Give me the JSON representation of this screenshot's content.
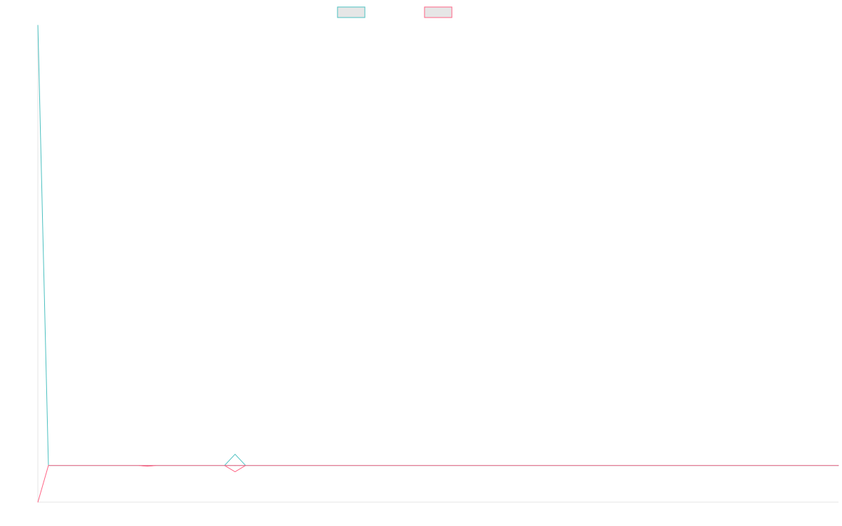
{
  "chart_data": {
    "type": "line",
    "title": "",
    "xlabel": "",
    "ylabel": "",
    "grid": false,
    "legend_position": "top",
    "x": [
      0,
      1,
      2,
      3,
      4
    ],
    "ylim": [
      -10,
      120
    ],
    "series": [
      {
        "color": "#4bc0c0",
        "legend_fill": "#e6e6e6",
        "values": [
          120,
          0,
          0,
          0,
          0
        ]
      },
      {
        "color": "#ff6384",
        "legend_fill": "#e6e6e6",
        "values": [
          -10,
          0,
          0,
          0,
          0
        ]
      }
    ]
  }
}
